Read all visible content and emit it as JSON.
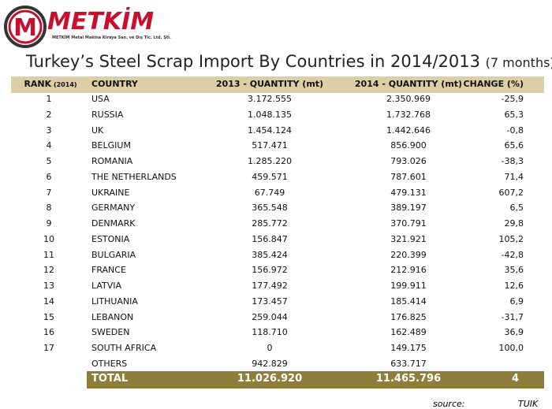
{
  "logo": {
    "name": "METKİM",
    "letter": "M",
    "company": "METKİM Metal Makina Kiraya San. ve Dış Tic. Ltd. Şti."
  },
  "title": "Turkey’s Steel Scrap Import By Countries in 2014/2013",
  "title_note": "(7 months)",
  "table": {
    "header": {
      "rank": "RANK",
      "rank_note": "(2014)",
      "country": "COUNTRY",
      "q2013": "2013 - QUANTITY (mt)",
      "q2014": "2014 - QUANTITY (mt)",
      "change": "CHANGE (%)"
    },
    "rows": [
      [
        "1",
        "USA",
        "3.172.555",
        "2.350.969",
        "-25,9"
      ],
      [
        "2",
        "RUSSIA",
        "1.048.135",
        "1.732.768",
        "65,3"
      ],
      [
        "3",
        "UK",
        "1.454.124",
        "1.442.646",
        "-0,8"
      ],
      [
        "4",
        "BELGIUM",
        "517.471",
        "856.900",
        "65,6"
      ],
      [
        "5",
        "ROMANIA",
        "1.285.220",
        "793.026",
        "-38,3"
      ],
      [
        "6",
        "THE NETHERLANDS",
        "459.571",
        "787.601",
        "71,4"
      ],
      [
        "7",
        "UKRAINE",
        "67.749",
        "479.131",
        "607,2"
      ],
      [
        "8",
        "GERMANY",
        "365.548",
        "389.197",
        "6,5"
      ],
      [
        "9",
        "DENMARK",
        "285.772",
        "370.791",
        "29,8"
      ],
      [
        "10",
        "ESTONIA",
        "156.847",
        "321.921",
        "105,2"
      ],
      [
        "11",
        "BULGARIA",
        "385.424",
        "220.399",
        "-42,8"
      ],
      [
        "12",
        "FRANCE",
        "156.972",
        "212.916",
        "35,6"
      ],
      [
        "13",
        "LATVIA",
        "177.492",
        "199.911",
        "12,6"
      ],
      [
        "14",
        "LITHUANIA",
        "173.457",
        "185.414",
        "6,9"
      ],
      [
        "15",
        "LEBANON",
        "259.044",
        "176.825",
        "-31,7"
      ],
      [
        "16",
        "SWEDEN",
        "118.710",
        "162.489",
        "36,9"
      ],
      [
        "17",
        "SOUTH AFRICA",
        "0",
        "149.175",
        "100,0"
      ]
    ],
    "others": {
      "country": "OTHERS",
      "q2013": "942.829",
      "q2014": "633.717"
    },
    "total": {
      "country": "TOTAL",
      "q2013": "11.026.920",
      "q2014": "11.465.796",
      "change": "4"
    }
  },
  "source": {
    "label": "source:",
    "value": "TUIK"
  }
}
